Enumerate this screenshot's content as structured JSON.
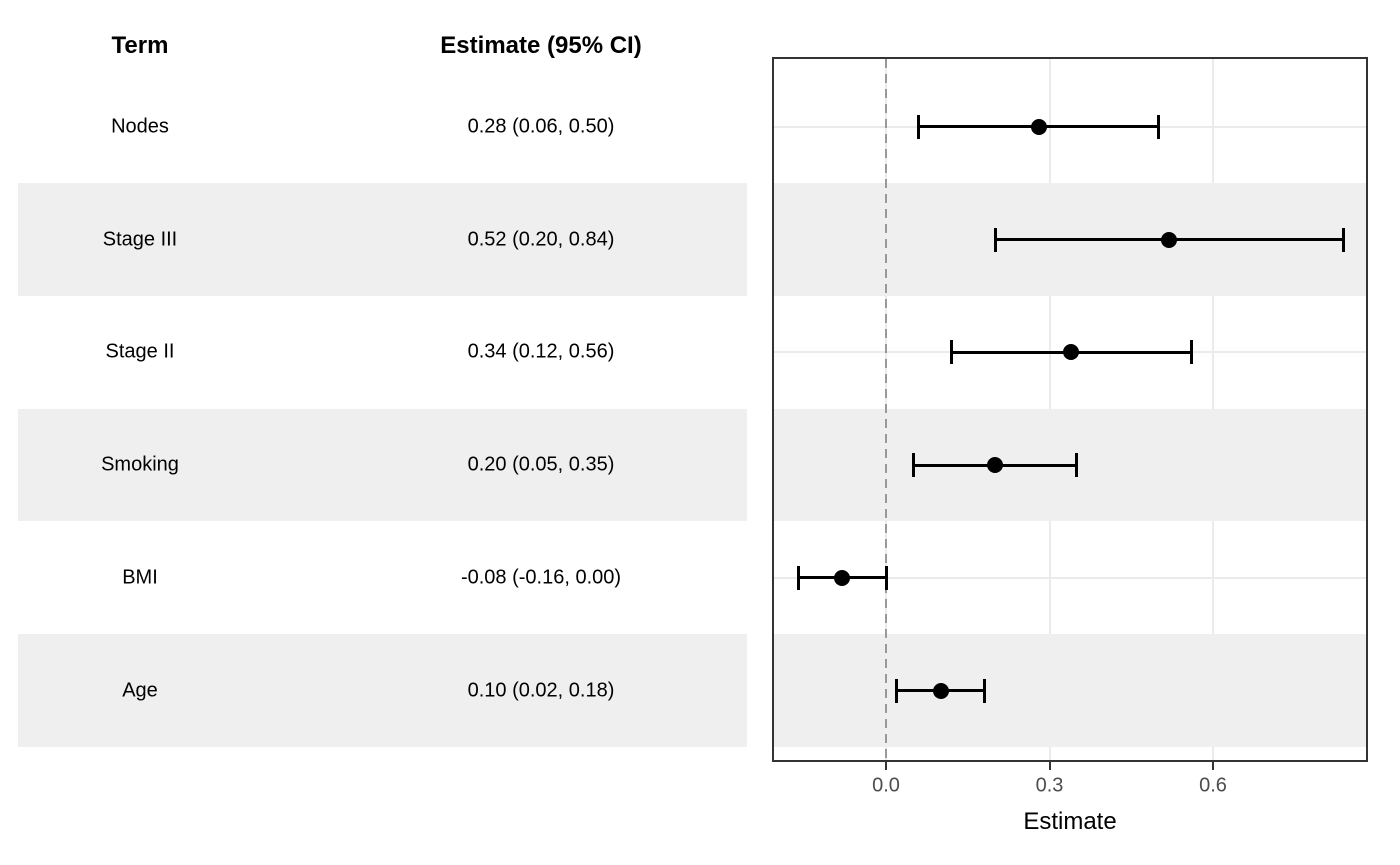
{
  "table": {
    "headers": {
      "term": "Term",
      "estimate": "Estimate (95% CI)"
    }
  },
  "chart_data": {
    "type": "forest",
    "title": "",
    "xlabel": "Estimate",
    "ylabel": "",
    "x_ticks": [
      0.0,
      0.3,
      0.6
    ],
    "x_tick_labels": [
      "0.0",
      "0.3",
      "0.6"
    ],
    "xlim": [
      -0.21,
      0.88
    ],
    "reference_line_x": 0,
    "grid": true,
    "legend": false,
    "rows": [
      {
        "term": "Nodes",
        "estimate_label": "0.28 (0.06, 0.50)",
        "estimate": 0.28,
        "ci_lower": 0.06,
        "ci_upper": 0.5,
        "shaded": false
      },
      {
        "term": "Stage III",
        "estimate_label": "0.52 (0.20, 0.84)",
        "estimate": 0.52,
        "ci_lower": 0.2,
        "ci_upper": 0.84,
        "shaded": true
      },
      {
        "term": "Stage II",
        "estimate_label": "0.34 (0.12, 0.56)",
        "estimate": 0.34,
        "ci_lower": 0.12,
        "ci_upper": 0.56,
        "shaded": false
      },
      {
        "term": "Smoking",
        "estimate_label": "0.20 (0.05, 0.35)",
        "estimate": 0.2,
        "ci_lower": 0.05,
        "ci_upper": 0.35,
        "shaded": true
      },
      {
        "term": "BMI",
        "estimate_label": "-0.08 (-0.16, 0.00)",
        "estimate": -0.08,
        "ci_lower": -0.16,
        "ci_upper": 0.0,
        "shaded": false
      },
      {
        "term": "Age",
        "estimate_label": "0.10 (0.02, 0.18)",
        "estimate": 0.1,
        "ci_lower": 0.02,
        "ci_upper": 0.18,
        "shaded": true
      }
    ]
  },
  "colors": {
    "stripe": "#EFEFEF",
    "grid": "#EBEBEB",
    "reference_line": "#999999",
    "marker": "#000000",
    "panel_border": "#333333",
    "tick_label": "#4D4D4D",
    "text": "#000000"
  }
}
